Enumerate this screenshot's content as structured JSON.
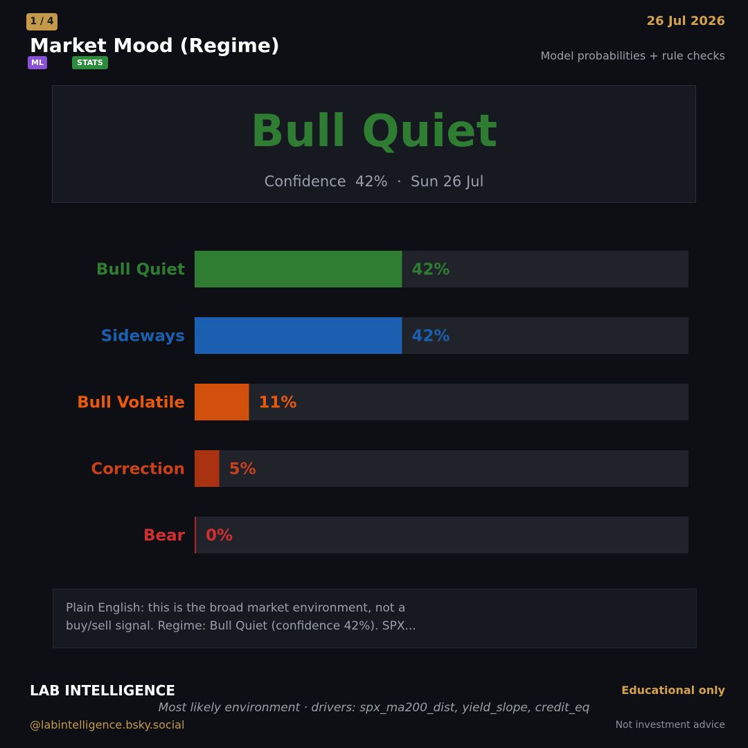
{
  "header": {
    "page_indicator": "1 / 4",
    "date": "26 Jul 2026",
    "title": "Market Mood (Regime)",
    "tags": [
      "ML",
      "STATS"
    ],
    "subtitle": "Model probabilities + rule checks"
  },
  "hero": {
    "regime": "Bull Quiet",
    "meta": "Confidence  42%  ·  Sun 26 Jul",
    "color": "#2e7d32"
  },
  "chart_data": {
    "type": "bar",
    "orientation": "horizontal",
    "categories": [
      "Bull Quiet",
      "Sideways",
      "Bull Volatile",
      "Correction",
      "Bear"
    ],
    "values": [
      42,
      42,
      11,
      5,
      0
    ],
    "value_labels": [
      "42%",
      "42%",
      "11%",
      "5%",
      "0%"
    ],
    "colors": [
      "#2e7d32",
      "#1a5fb0",
      "#d0500c",
      "#a83212",
      "#b52424"
    ],
    "label_colors": [
      "#2e7d32",
      "#1a5fb0",
      "#e8590c",
      "#c9401a",
      "#d32f2f"
    ],
    "xlim": [
      0,
      100
    ],
    "grid": false
  },
  "note": {
    "text": "Plain English: this is the broad market environment, not a buy/sell signal. Regime: Bull Quiet (confidence 42%). SPX..."
  },
  "footer": {
    "brand": "LAB INTELLIGENCE",
    "educational": "Educational only",
    "drivers": "Most likely environment · drivers: spx_ma200_dist, yield_slope, credit_eq",
    "handle": "@labintelligence.bsky.social",
    "disclaimer": "Not investment advice"
  }
}
